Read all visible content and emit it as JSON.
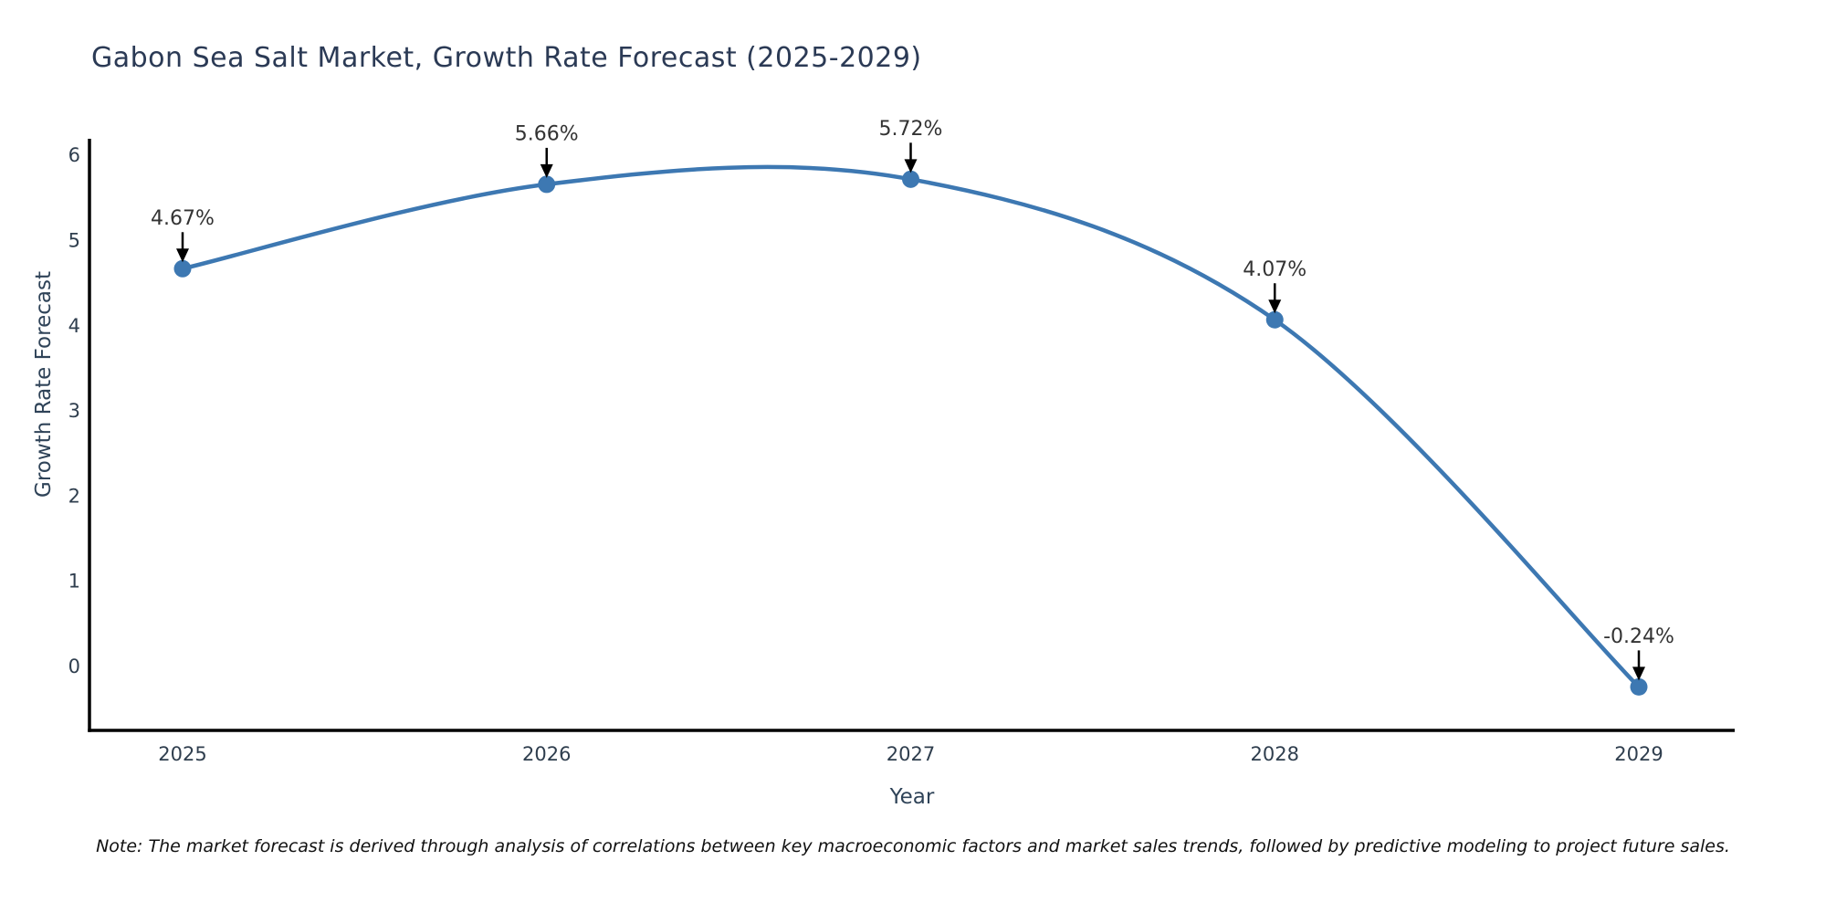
{
  "title": "Gabon Sea Salt Market, Growth Rate Forecast (2025-2029)",
  "note": "Note: The market forecast is derived through analysis of correlations between key macroeconomic factors and market sales trends, followed by predictive modeling to project future sales.",
  "chart_data": {
    "type": "line",
    "title": "Gabon Sea Salt Market, Growth Rate Forecast (2025-2029)",
    "xlabel": "Year",
    "ylabel": "Growth Rate Forecast",
    "x": [
      2025,
      2026,
      2027,
      2028,
      2029
    ],
    "x_tick_labels": [
      "2025",
      "2026",
      "2027",
      "2028",
      "2029"
    ],
    "series": [
      {
        "name": "Growth Rate Forecast",
        "values": [
          4.67,
          5.66,
          5.72,
          4.07,
          -0.24
        ]
      }
    ],
    "point_labels": [
      "4.67%",
      "5.66%",
      "5.72%",
      "4.07%",
      "-0.24%"
    ],
    "yticks": [
      0,
      1,
      2,
      3,
      4,
      5,
      6
    ],
    "ylim": [
      -0.75,
      6.2
    ],
    "xlim": [
      2024.74,
      2029.26
    ],
    "grid": false,
    "legend": "none",
    "colors": {
      "line": "#3d78b2",
      "marker": "#3d78b2",
      "annotation_text": "#333333",
      "arrow": "#000000",
      "axis": "#000000",
      "tick_label": "#2f3e4e",
      "title": "#2b3a55",
      "background": "#ffffff"
    }
  }
}
